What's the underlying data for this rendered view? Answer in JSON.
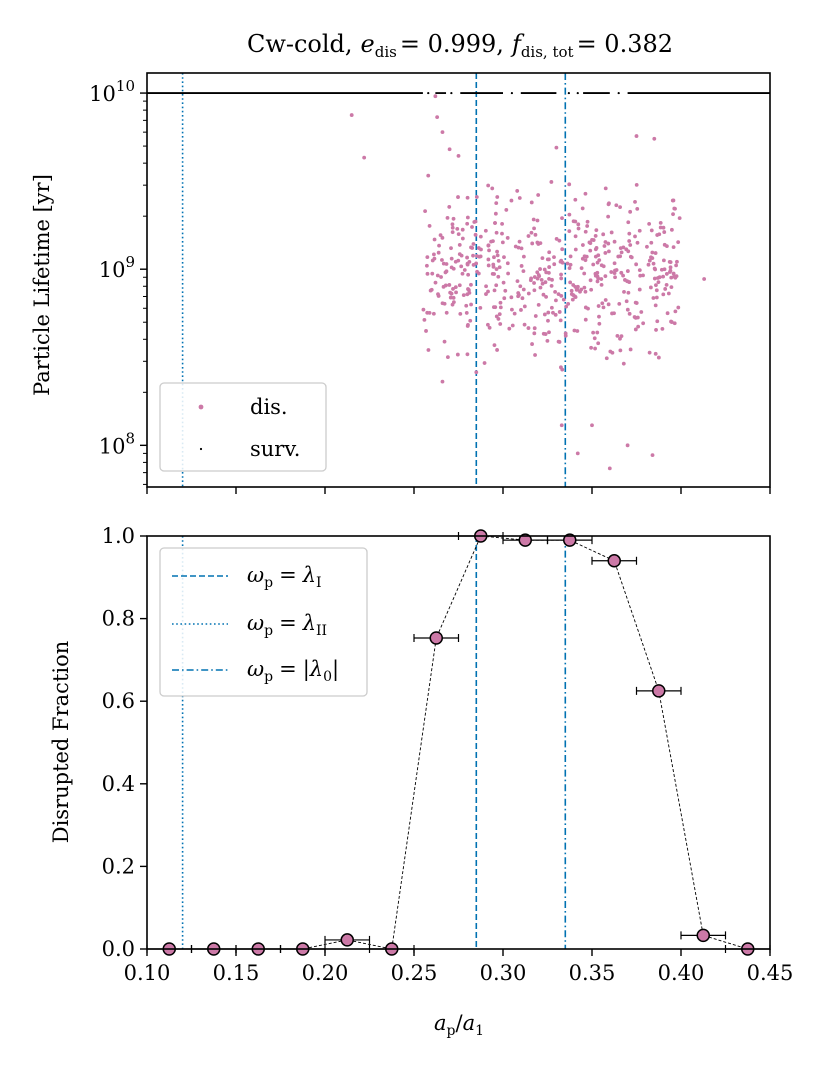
{
  "chart_data": [
    {
      "type": "scatter",
      "panel": "top",
      "title": "Cw-cold, e_dis = 0.999, f_dis,tot = 0.382",
      "title_parts": {
        "prefix": "Cw-cold,",
        "e_sym": "e",
        "e_sub": "dis",
        "e_val": "= 0.999,",
        "f_sym": "f",
        "f_sub": "dis, tot",
        "f_val": "= 0.382"
      },
      "ylabel": "Particle Lifetime [yr]",
      "yscale": "log",
      "xlim": [
        0.1,
        0.45
      ],
      "ylim": [
        58000000.0,
        13000000000.0
      ],
      "ytick_labels": [
        {
          "value": 10000000000.0,
          "base": "10",
          "exp": "10"
        },
        {
          "value": 1000000000.0,
          "base": "10",
          "exp": "9"
        },
        {
          "value": 100000000.0,
          "base": "10",
          "exp": "8"
        }
      ],
      "survived_lifetime": 10000000000.0,
      "survived_ranges": [
        [
          0.1,
          0.255
        ],
        [
          0.262,
          0.268
        ],
        [
          0.276,
          0.3
        ],
        [
          0.31,
          0.33
        ],
        [
          0.345,
          0.36
        ],
        [
          0.37,
          0.45
        ]
      ],
      "survived_isolated": [
        0.258,
        0.271,
        0.305,
        0.337,
        0.342,
        0.365
      ],
      "disrupted_sample": [
        {
          "x": 0.215,
          "y": 7500000000.0
        },
        {
          "x": 0.222,
          "y": 4300000000.0
        },
        {
          "x": 0.262,
          "y": 9600000000.0
        },
        {
          "x": 0.263,
          "y": 7300000000.0
        },
        {
          "x": 0.266,
          "y": 6000000000.0
        },
        {
          "x": 0.258,
          "y": 3400000000.0
        },
        {
          "x": 0.27,
          "y": 4800000000.0
        },
        {
          "x": 0.275,
          "y": 4400000000.0
        },
        {
          "x": 0.33,
          "y": 4900000000.0
        },
        {
          "x": 0.375,
          "y": 5700000000.0
        },
        {
          "x": 0.385,
          "y": 5500000000.0
        },
        {
          "x": 0.413,
          "y": 880000000.0
        },
        {
          "x": 0.36,
          "y": 74000000.0
        },
        {
          "x": 0.342,
          "y": 90000000.0
        },
        {
          "x": 0.384,
          "y": 88000000.0
        },
        {
          "x": 0.37,
          "y": 100000000.0
        },
        {
          "x": 0.266,
          "y": 230000000.0
        },
        {
          "x": 0.285,
          "y": 260000000.0
        },
        {
          "x": 0.333,
          "y": 130000000.0
        },
        {
          "x": 0.35,
          "y": 130000000.0
        }
      ],
      "disrupted_cloud": {
        "x_range": [
          0.255,
          0.4
        ],
        "y_range": [
          130000000.0,
          4500000000.0
        ],
        "count": 520
      },
      "legend": {
        "position": "lower-left",
        "entries": [
          {
            "label": "dis.",
            "marker": "dot",
            "color": "#cc79a7"
          },
          {
            "label": "surv.",
            "marker": "small-dot",
            "color": "#000000"
          }
        ]
      },
      "vlines": [
        {
          "x": 0.12,
          "style": "dotted",
          "color": "#0072b2"
        },
        {
          "x": 0.285,
          "style": "dashed",
          "color": "#0072b2"
        },
        {
          "x": 0.335,
          "style": "dashdot",
          "color": "#0072b2"
        }
      ]
    },
    {
      "type": "line",
      "panel": "bottom",
      "xlabel": "a_p / a_1",
      "xlabel_parts": {
        "a": "a",
        "p_sub": "p",
        "slash": "/",
        "a2": "a",
        "one_sub": "1"
      },
      "ylabel": "Disrupted Fraction",
      "xlim": [
        0.1,
        0.45
      ],
      "ylim": [
        0.0,
        1.0
      ],
      "xtick_labels": [
        "0.10",
        "0.15",
        "0.20",
        "0.25",
        "0.30",
        "0.35",
        "0.40",
        "0.45"
      ],
      "xtick_values": [
        0.1,
        0.15,
        0.2,
        0.25,
        0.3,
        0.35,
        0.4,
        0.45
      ],
      "ytick_labels": [
        "0.0",
        "0.2",
        "0.4",
        "0.6",
        "0.8",
        "1.0"
      ],
      "ytick_values": [
        0.0,
        0.2,
        0.4,
        0.6,
        0.8,
        1.0
      ],
      "x": [
        0.1125,
        0.1375,
        0.1625,
        0.1875,
        0.2125,
        0.2375,
        0.2625,
        0.2875,
        0.3125,
        0.3375,
        0.3625,
        0.3875,
        0.4125,
        0.4375
      ],
      "values": [
        0.0,
        0.0,
        0.0,
        0.0,
        0.022,
        0.0,
        0.753,
        1.0,
        0.99,
        0.99,
        0.94,
        0.625,
        0.033,
        0.0
      ],
      "xerr": 0.0125,
      "marker_color": "#cc79a7",
      "legend": {
        "position": "upper-left",
        "entries": [
          {
            "lhs": "ω",
            "lhs_sub": "p",
            "eq": "=",
            "rhs": "λ",
            "rhs_sub": "I",
            "style": "dashed"
          },
          {
            "lhs": "ω",
            "lhs_sub": "p",
            "eq": "=",
            "rhs": "λ",
            "rhs_sub": "II",
            "style": "dotted"
          },
          {
            "lhs": "ω",
            "lhs_sub": "p",
            "eq": "=",
            "rhs": "|λ",
            "rhs_sub": "0",
            "rhs_end": "|",
            "style": "dashdot"
          }
        ]
      },
      "vlines": [
        {
          "x": 0.12,
          "style": "dotted",
          "color": "#0072b2"
        },
        {
          "x": 0.285,
          "style": "dashed",
          "color": "#0072b2"
        },
        {
          "x": 0.335,
          "style": "dashdot",
          "color": "#0072b2"
        }
      ]
    }
  ]
}
